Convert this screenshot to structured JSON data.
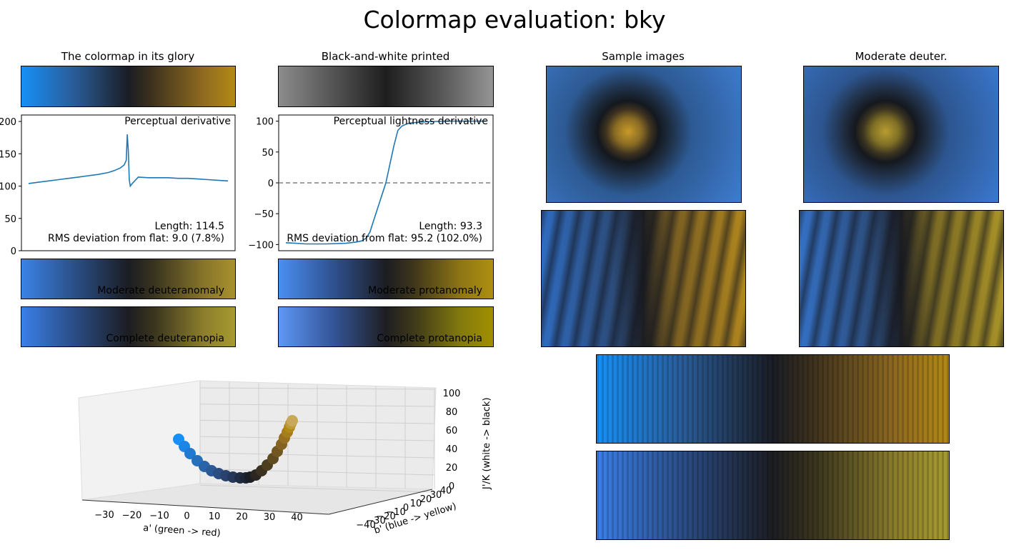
{
  "page": {
    "title": "Colormap evaluation: bky"
  },
  "panels": {
    "glory_title": "The colormap in its glory",
    "bw_title": "Black-and-white printed",
    "samples_title": "Sample images",
    "deuter_title": "Moderate deuter."
  },
  "strips": {
    "moderate_deuteranomaly": "Moderate deuteranomaly",
    "complete_deuteranopia": "Complete deuteranopia",
    "moderate_protanomaly": "Moderate protanomaly",
    "complete_protanopia": "Complete protanopia"
  },
  "chart_data": [
    {
      "type": "line",
      "title": "Perceptual derivative",
      "annotations": [
        "Length: 114.5",
        "RMS deviation from flat: 9.0 (7.8%)"
      ],
      "ylim": [
        0,
        210
      ],
      "yticks": [
        0,
        50,
        100,
        150,
        200
      ],
      "ytick_labels": [
        "0",
        "50",
        "100",
        "150",
        "200"
      ],
      "x": [
        0,
        0.05,
        0.1,
        0.15,
        0.2,
        0.25,
        0.3,
        0.35,
        0.4,
        0.43,
        0.46,
        0.48,
        0.49,
        0.495,
        0.5,
        0.505,
        0.51,
        0.52,
        0.55,
        0.6,
        0.65,
        0.7,
        0.75,
        0.8,
        0.85,
        0.9,
        0.95,
        1.0
      ],
      "y": [
        104,
        106,
        108,
        110,
        112,
        114,
        116,
        118,
        121,
        124,
        128,
        133,
        140,
        180,
        156,
        110,
        100,
        104,
        114,
        113,
        113,
        113,
        112,
        112,
        111,
        110,
        109,
        108
      ],
      "color": "#1f77b4"
    },
    {
      "type": "line",
      "title": "Perceptual lightness derivative",
      "annotations": [
        "Length: 93.3",
        "RMS deviation from flat: 95.2 (102.0%)"
      ],
      "ylim": [
        -110,
        110
      ],
      "yticks": [
        -100,
        -50,
        0,
        50,
        100
      ],
      "ytick_labels": [
        "−100",
        "−50",
        "0",
        "50",
        "100"
      ],
      "reference_line": 0,
      "x": [
        0,
        0.05,
        0.1,
        0.2,
        0.3,
        0.35,
        0.38,
        0.4,
        0.42,
        0.44,
        0.46,
        0.48,
        0.5,
        0.52,
        0.54,
        0.56,
        0.58,
        0.6,
        0.62,
        0.7,
        0.8,
        0.9,
        1.0
      ],
      "y": [
        -97,
        -98,
        -99,
        -99,
        -98,
        -96,
        -94,
        -90,
        -80,
        -60,
        -40,
        -20,
        0,
        30,
        60,
        85,
        92,
        95,
        97,
        99,
        100,
        100,
        100
      ],
      "color": "#1f77b4"
    },
    {
      "type": "scatter",
      "title": "",
      "xlabel": "a' (green -> red)",
      "ylabel": "b' (blue -> yellow)",
      "zlabel": "J'/K (white -> black)",
      "xtick_labels": [
        "−30",
        "−20",
        "−10",
        "0",
        "10",
        "20",
        "30",
        "40"
      ],
      "ytick_labels": [
        "−40",
        "−30",
        "−20",
        "−10",
        "0",
        "10",
        "20",
        "30",
        "40"
      ],
      "ztick_labels": [
        "0",
        "20",
        "40",
        "60",
        "80",
        "100"
      ]
    }
  ]
}
